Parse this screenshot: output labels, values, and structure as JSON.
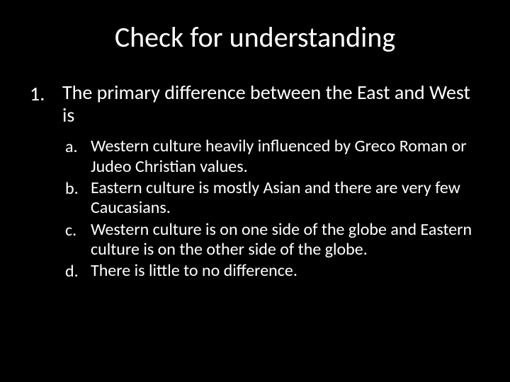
{
  "slide": {
    "background_color": "#000000",
    "text_color": "#ffffff",
    "font_family": "Calibri",
    "title": {
      "text": "Check for understanding",
      "fontsize": 40,
      "align": "center"
    },
    "question": {
      "number": "1.",
      "text": "The primary difference between the East and West is",
      "fontsize": 28
    },
    "options": [
      {
        "label": "a.",
        "text": "Western culture heavily influenced by Greco Roman or Judeo Christian values."
      },
      {
        "label": "b.",
        "text": "Eastern culture is mostly Asian and there are very few Caucasians."
      },
      {
        "label": "c.",
        "text": "Western culture is on one side of the globe and Eastern culture is on the other side of the globe."
      },
      {
        "label": "d.",
        "text": "There is little to no difference."
      }
    ],
    "option_fontsize": 24
  }
}
